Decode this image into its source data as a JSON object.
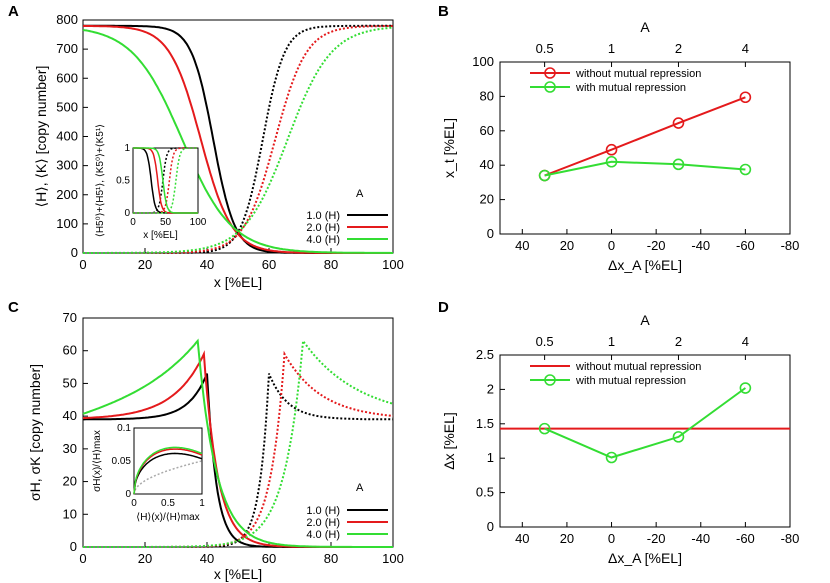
{
  "colors": {
    "black": "#000000",
    "red": "#e41a1c",
    "green": "#33dd33",
    "gray": "#aaaaaa"
  },
  "chart_data": [
    {
      "panel": "A",
      "type": "line",
      "xlabel": "x [%EL]",
      "ylabel": "⟨H⟩, ⟨K⟩ [copy number]",
      "xlim": [
        0,
        100
      ],
      "ylim": [
        0,
        800
      ],
      "xticks": [
        0,
        20,
        40,
        60,
        80,
        100
      ],
      "yticks": [
        0,
        100,
        200,
        300,
        400,
        500,
        600,
        700,
        800
      ],
      "legend_title": "A",
      "series": [
        {
          "name": "1.0  (H)",
          "color": "#000000",
          "A": 1.0,
          "x_mid": 42,
          "width": 3.5
        },
        {
          "name": "2.0  (H)",
          "color": "#e41a1c",
          "A": 2.0,
          "x_mid": 38,
          "width": 5
        },
        {
          "name": "4.0  (H)",
          "color": "#33dd33",
          "A": 4.0,
          "x_mid": 32,
          "width": 8
        }
      ],
      "mirror_series": [
        {
          "color": "#000000",
          "x_mid": 58,
          "width": 3.5,
          "style": "dotted"
        },
        {
          "color": "#e41a1c",
          "x_mid": 62,
          "width": 5,
          "style": "dotted"
        },
        {
          "color": "#33dd33",
          "x_mid": 66,
          "width": 7,
          "style": "dotted"
        }
      ],
      "max_copy": 780,
      "inset": {
        "xlabel": "x [%EL]",
        "ylabel": "⟨H5⁰⟩+⟨H5¹⟩, ⟨K5⁰⟩+⟨K5¹⟩",
        "xlim": [
          0,
          100
        ],
        "ylim": [
          0,
          1
        ],
        "xticks": [
          0,
          50,
          100
        ],
        "yticks": [
          0,
          0.5,
          1
        ],
        "x_mids": [
          [
            28,
            46
          ],
          [
            38,
            56
          ],
          [
            46,
            66
          ]
        ]
      }
    },
    {
      "panel": "B",
      "type": "line",
      "xlabel": "Δx_A [%EL]",
      "ylabel": "x_t [%EL]",
      "top_label": "A",
      "top_ticks": [
        "0.5",
        "1",
        "2",
        "4"
      ],
      "x": [
        30,
        0,
        -30,
        -60
      ],
      "xticks": [
        40,
        20,
        0,
        -20,
        -40,
        -60,
        -80
      ],
      "xlim": [
        50,
        -80
      ],
      "ylim": [
        0,
        100
      ],
      "yticks": [
        0,
        20,
        40,
        60,
        80,
        100
      ],
      "series": [
        {
          "name": "without mutual repression",
          "color": "#e41a1c",
          "values": [
            34,
            49,
            64.5,
            79.5
          ]
        },
        {
          "name": "with mutual repression",
          "color": "#33dd33",
          "values": [
            34,
            42,
            40.5,
            37.5
          ]
        }
      ]
    },
    {
      "panel": "C",
      "type": "line",
      "xlabel": "x [%EL]",
      "ylabel": "σH, σK [copy number]",
      "xlim": [
        0,
        100
      ],
      "ylim": [
        0,
        70
      ],
      "xticks": [
        0,
        20,
        40,
        60,
        80,
        100
      ],
      "yticks": [
        0,
        10,
        20,
        30,
        40,
        50,
        60,
        70
      ],
      "legend_title": "A",
      "series": [
        {
          "name": "1.0  (H)",
          "color": "#000000",
          "peak_x": 40,
          "peak": 53
        },
        {
          "name": "2.0  (H)",
          "color": "#e41a1c",
          "peak_x": 39,
          "peak": 59
        },
        {
          "name": "4.0  (H)",
          "color": "#33dd33",
          "peak_x": 37,
          "peak": 63
        }
      ],
      "inset": {
        "xlabel": "⟨H⟩(x)/⟨H⟩max",
        "ylabel": "σH(x)/⟨H⟩max",
        "xlim": [
          0,
          1
        ],
        "ylim": [
          0,
          0.1
        ],
        "xticks": [
          "0",
          "0.5",
          "1"
        ],
        "yticks": [
          "0",
          "0.05",
          "0.1"
        ]
      }
    },
    {
      "panel": "D",
      "type": "line",
      "xlabel": "Δx_A [%EL]",
      "ylabel": "Δx [%EL]",
      "top_label": "A",
      "top_ticks": [
        "0.5",
        "1",
        "2",
        "4"
      ],
      "x": [
        30,
        0,
        -30,
        -60
      ],
      "xticks": [
        40,
        20,
        0,
        -20,
        -40,
        -60,
        -80
      ],
      "xlim": [
        50,
        -80
      ],
      "ylim": [
        0,
        2.5
      ],
      "yticks": [
        0,
        0.5,
        1,
        1.5,
        2,
        2.5
      ],
      "series": [
        {
          "name": "without mutual repression",
          "color": "#e41a1c",
          "constant": 1.43
        },
        {
          "name": "with mutual repression",
          "color": "#33dd33",
          "values": [
            1.43,
            1.01,
            1.31,
            2.02
          ]
        }
      ]
    }
  ]
}
